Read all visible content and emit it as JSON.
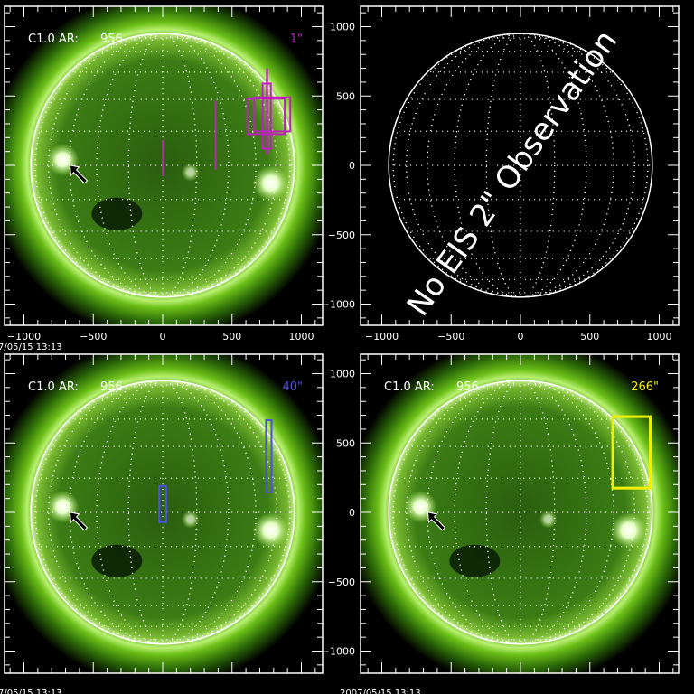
{
  "colors": {
    "background": "#000000",
    "axes": "#ffffff",
    "corona": "#7fcf1a",
    "disk": "#2f6a10"
  },
  "axis_ticks": {
    "x": [
      "−1000",
      "−500",
      "0",
      "500",
      "1000"
    ],
    "y": [
      "1000",
      "500",
      "0",
      "−500",
      "−1000"
    ],
    "values": [
      -1000,
      -500,
      0,
      500,
      1000
    ]
  },
  "panels": [
    {
      "id": "top-left",
      "has_image": true,
      "label": "C1.0 AR:",
      "ar": "956",
      "tag": "1\"",
      "tag_color": "#c020c0",
      "timestamp": "7/05/15 13:13",
      "rasters": [
        {
          "x": [
            -5,
            5
          ],
          "y": [
            -78,
            183
          ],
          "type": "line"
        },
        {
          "x": [
            375,
            385
          ],
          "y": [
            -30,
            465
          ],
          "type": "line"
        },
        {
          "x": [
            610,
            880
          ],
          "y": [
            225,
            480
          ],
          "type": "box"
        },
        {
          "x": [
            660,
            920
          ],
          "y": [
            245,
            490
          ],
          "type": "box"
        },
        {
          "x": [
            720,
            780
          ],
          "y": [
            120,
            590
          ],
          "type": "box"
        },
        {
          "x": [
            745,
            760
          ],
          "y": [
            80,
            700
          ],
          "type": "line"
        }
      ]
    },
    {
      "id": "top-right",
      "has_image": false,
      "message": "No EIS 2\" Observation",
      "show_y_ticks": true
    },
    {
      "id": "bottom-left",
      "has_image": true,
      "label": "C1.0 AR:",
      "ar": "956",
      "tag": "40\"",
      "tag_color": "#5050e0",
      "timestamp": "7/05/15 13:13",
      "rasters": [
        {
          "x": [
            -25,
            25
          ],
          "y": [
            -70,
            190
          ],
          "type": "box"
        },
        {
          "x": [
            745,
            785
          ],
          "y": [
            145,
            665
          ],
          "type": "box"
        }
      ]
    },
    {
      "id": "bottom-right",
      "has_image": true,
      "label": "C1.0 AR:",
      "ar": "956",
      "tag": "266\"",
      "tag_color": "#f0f000",
      "timestamp": "2007/05/15 13:13",
      "show_y_ticks": true,
      "rasters": [
        {
          "x": [
            665,
            935
          ],
          "y": [
            175,
            690
          ],
          "type": "box"
        }
      ]
    }
  ]
}
